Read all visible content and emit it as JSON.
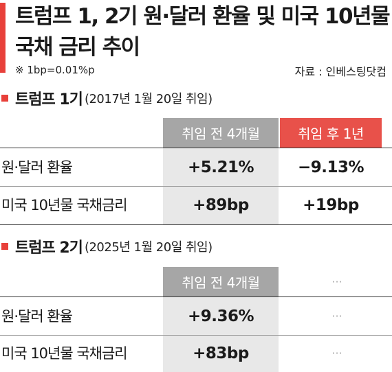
{
  "title": "트럼프 1, 2기 원·달러 환율 및 미국 10년물 국채 금리 추이",
  "note": "※ 1bp=0.01%p",
  "source": "자료 : 인베스팅닷컴",
  "section1": {
    "name": "트럼프 1기",
    "sub": "(2017년 1월 20일 취임)",
    "col_before": "취임 전 4개월",
    "col_after": "취임 후 1년",
    "rows": [
      {
        "label": "원·달러 환율",
        "before": "+5.21%",
        "after": "−9.13%"
      },
      {
        "label": "미국 10년물 국채금리",
        "before": "+89bp",
        "after": "+19bp"
      }
    ]
  },
  "section2": {
    "name": "트럼프 2기",
    "sub": "(2025년 1월 20일 취임)",
    "col_before": "취임 전 4개월",
    "col_after": "···",
    "rows": [
      {
        "label": "원·달러 환율",
        "before": "+9.36%",
        "after": "···"
      },
      {
        "label": "미국 10년물 국채금리",
        "before": "+83bp",
        "after": "···"
      }
    ]
  },
  "colors": {
    "accent": "#e8403a",
    "header_gray": "#a6a6a6",
    "header_red": "#e8514a",
    "cell_shade": "#e8e8e8"
  }
}
